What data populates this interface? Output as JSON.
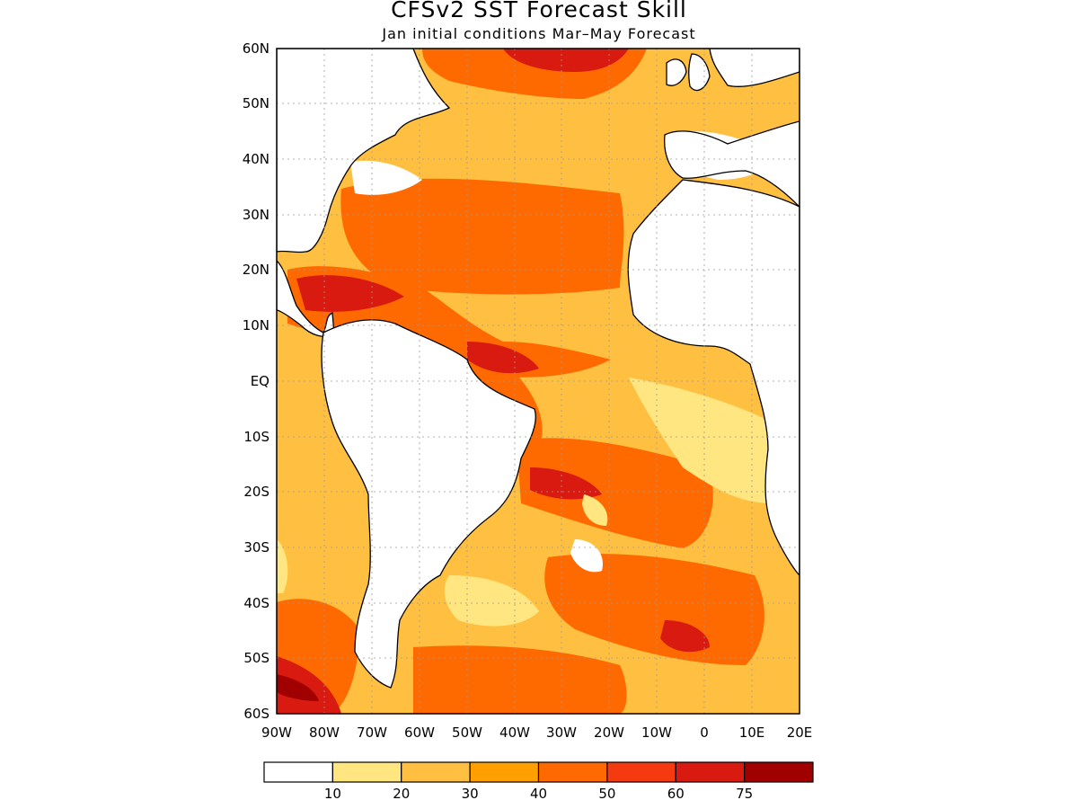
{
  "title": "CFSv2 SST Forecast Skill",
  "subtitle": "Jan initial conditions  Mar–May Forecast",
  "map": {
    "lat_labels": [
      "60N",
      "50N",
      "40N",
      "30N",
      "20N",
      "10N",
      "EQ",
      "10S",
      "20S",
      "30S",
      "40S",
      "50S",
      "60S"
    ],
    "lon_labels": [
      "90W",
      "80W",
      "70W",
      "60W",
      "50W",
      "40W",
      "30W",
      "20W",
      "10W",
      "0",
      "10E",
      "20E"
    ],
    "lon_range": [
      -90,
      20
    ],
    "lat_range": [
      -60,
      60
    ],
    "grid": true
  },
  "colorbar": {
    "colors": [
      "#ffffff",
      "#ffe680",
      "#ffbf40",
      "#ffa000",
      "#ff6a00",
      "#f53a10",
      "#d91a10",
      "#a00000"
    ],
    "tick_labels": [
      "10",
      "20",
      "30",
      "40",
      "50",
      "60",
      "75"
    ]
  }
}
